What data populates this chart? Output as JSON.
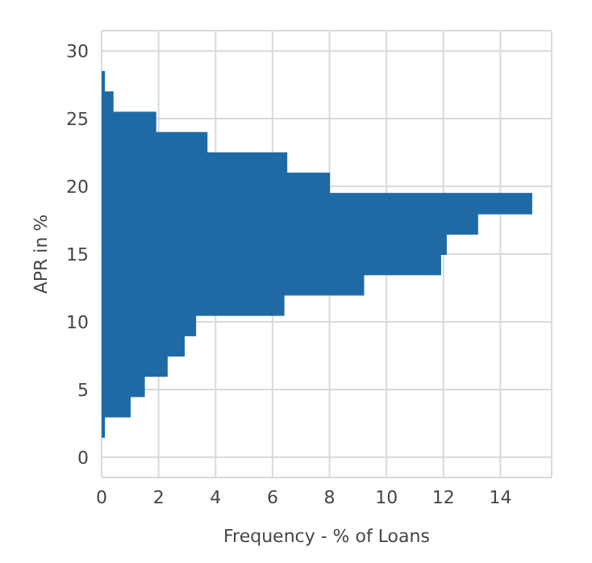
{
  "chart_data": {
    "type": "histogram",
    "orientation": "horizontal",
    "xlabel": "Frequency - % of Loans",
    "ylabel": "APR in %",
    "color": "#1f6aa5",
    "bins": [
      1.5,
      3,
      4.5,
      6,
      7.5,
      9,
      10.5,
      12,
      13.5,
      15,
      16.5,
      18,
      19.5,
      21,
      22.5,
      24,
      25.5,
      27,
      28.5
    ],
    "values": [
      0.1,
      1.0,
      1.5,
      2.3,
      2.9,
      3.3,
      6.4,
      9.2,
      11.9,
      12.1,
      13.2,
      15.1,
      8.0,
      6.5,
      3.7,
      1.9,
      0.4,
      0.1
    ],
    "xlim": [
      0,
      15.8
    ],
    "xticks": [
      0,
      2,
      4,
      6,
      8,
      10,
      12,
      14
    ],
    "ylim": [
      -1.5,
      31.5
    ],
    "yticks": [
      0,
      5,
      10,
      15,
      20,
      25,
      30
    ],
    "grid": true
  }
}
